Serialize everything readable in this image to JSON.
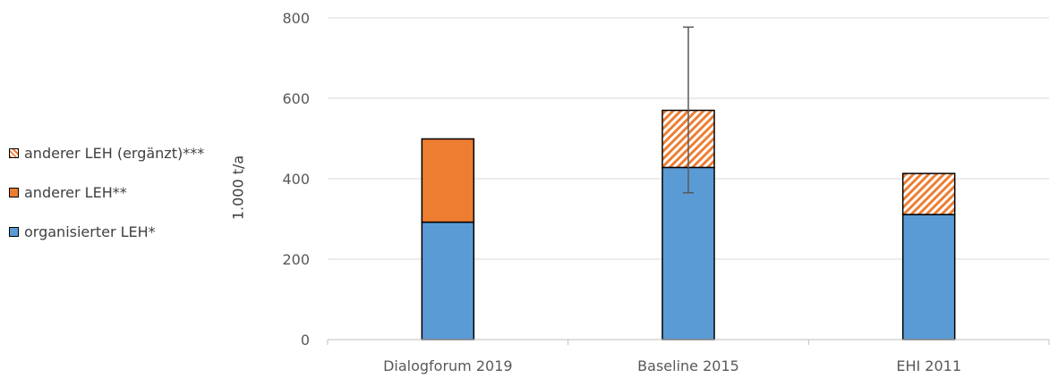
{
  "chart_data": {
    "type": "bar",
    "stacked": true,
    "categories": [
      "Dialogforum 2019",
      "Baseline 2015",
      "EHI 2011"
    ],
    "series": [
      {
        "name": "organisierter LEH*",
        "values": [
          292,
          428,
          311
        ],
        "color": "#5B9BD5",
        "pattern": "solid"
      },
      {
        "name": "anderer LEH**",
        "values": [
          207,
          0,
          0
        ],
        "color": "#ED7D31",
        "pattern": "solid"
      },
      {
        "name": "anderer LEH (ergänzt)***",
        "values": [
          0,
          142,
          102
        ],
        "color": "#ED7D31",
        "pattern": "hatched"
      }
    ],
    "error_bar": {
      "category": "Baseline 2015",
      "low": 365,
      "high": 777
    },
    "ylabel": "1.000 t/a",
    "ylim": [
      0,
      800
    ],
    "yticks": [
      0,
      200,
      400,
      600,
      800
    ],
    "grid": true,
    "legend_position": "left"
  },
  "legend": {
    "items": [
      {
        "label": "anderer LEH (ergänzt)***",
        "series_index": 2
      },
      {
        "label": "anderer LEH**",
        "series_index": 1
      },
      {
        "label": "organisierter LEH*",
        "series_index": 0
      }
    ]
  }
}
